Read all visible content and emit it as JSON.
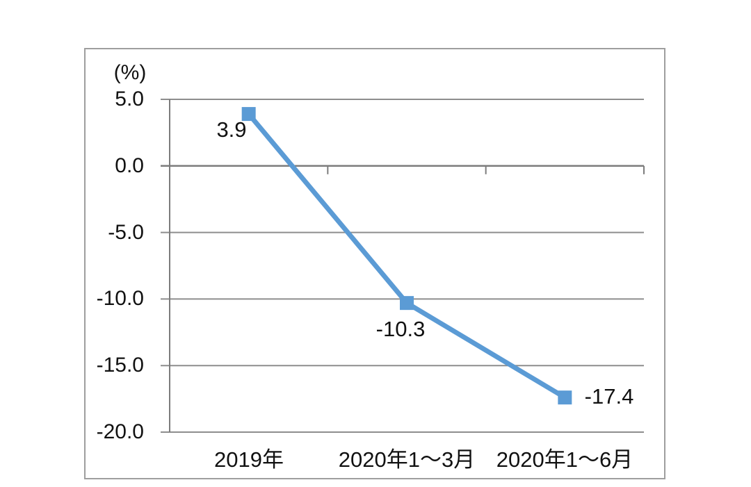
{
  "chart_data": {
    "type": "line",
    "title": "",
    "unit_label": "(%)",
    "categories": [
      "2019年",
      "2020年1～3月",
      "2020年1～6月"
    ],
    "values": [
      3.9,
      -10.3,
      -17.4
    ],
    "data_labels": [
      "3.9",
      "-10.3",
      "-17.4"
    ],
    "ylim": [
      -20,
      5
    ],
    "yticks": [
      5,
      0,
      -5,
      -10,
      -15,
      -20
    ],
    "ytick_labels": [
      "5.0",
      "0.0",
      "-5.0",
      "-10.0",
      "-15.0",
      "-20.0"
    ],
    "grid": true,
    "legend_position": "none",
    "marker_shape": "square",
    "colors": {
      "line": "#5b9bd5",
      "marker": "#5b9bd5",
      "grid": "#8d8d8d",
      "axis": "#7c7c7c",
      "border": "#9e9e9e",
      "text": "#111111",
      "background": "#ffffff"
    }
  }
}
